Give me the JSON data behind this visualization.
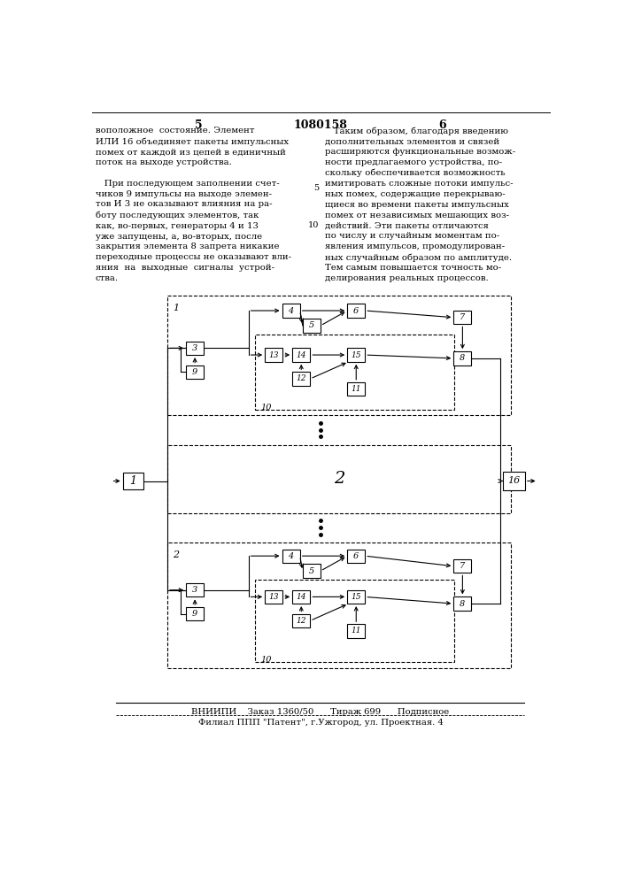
{
  "page_number_left": "5",
  "page_number_center": "1080158",
  "page_number_right": "6",
  "text_left": "воположное  состояние. Элемент\nИЛИ 16 объединяет пакеты импульсных\nпомех от каждой из цепей в единичный\nпоток на выходе устройства.\n\n   При последующем заполнении счет-\nчиков 9 импульсы на выходе элемен-\nтов И 3 не оказывают влияния на ра-\nботу последующих элементов, так\nкак, во-первых, генераторы 4 и 13\nуже запущены, а, во-вторых, после\nзакрытия элемента 8 запрета никакие\nпереходные процессы не оказывают вли-\nяния  на  выходные  сигналы  устрой-\nства.",
  "text_right": "   Таким образом, благодаря введению\nдополнительных элементов и связей\nрасширяются функциональные возмож-\nности предлагаемого устройства, по-\nскольку обеспечивается возможность\nимитировать сложные потоки импульс-\nных помех, содержащие перекрываю-\nщиеся во времени пакеты импульсных\nпомех от независимых мешающих воз-\nдействий. Эти пакеты отличаются\nпо числу и случайным моментам по-\nявления импульсов, промодулирован-\nных случайным образом по амплитуде.\nТем самым повышается точность мо-\nделирования реальных процессов.",
  "footer_line1": "ВНИИПИ    Заказ 1360/50      Тираж 699      Подписное",
  "footer_line2": "Филиал ППП \"Патент\", г.Ужгород, ул. Проектная. 4",
  "bg_color": "#ffffff",
  "text_color": "#000000"
}
